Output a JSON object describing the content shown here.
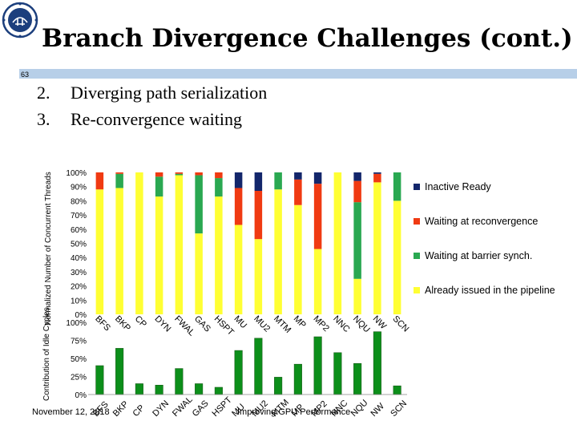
{
  "slide": {
    "title": "Branch Divergence Challenges (cont.)",
    "number": "63",
    "bullets": [
      {
        "num": "2.",
        "text": "Diverging path serialization"
      },
      {
        "num": "3.",
        "text": "Re-convergence waiting"
      }
    ],
    "footer_date": "November 12, 2018",
    "footer_title": "Improving GPU Performance"
  },
  "colors": {
    "band": "#b7cfe8",
    "inactive_ready": "#13266b",
    "waiting_reconvergence": "#f03a12",
    "waiting_barrier": "#2aa851",
    "already_issued": "#ffff33",
    "idle_bar": "#0c8f1a"
  },
  "chart_data": [
    {
      "type": "bar",
      "stacked": true,
      "categories": [
        "BFS",
        "BKP",
        "CP",
        "DYN",
        "FWAL",
        "GAS",
        "HSPT",
        "MU",
        "MU2",
        "MTM",
        "MP",
        "MP2",
        "NNC",
        "NQU",
        "NW",
        "SCN"
      ],
      "ylabel": "Normalized Number of Concurrent Threads",
      "ylim": [
        0,
        100
      ],
      "yticks": [
        "0%",
        "10%",
        "20%",
        "30%",
        "40%",
        "50%",
        "60%",
        "70%",
        "80%",
        "90%",
        "100%"
      ],
      "legend_position": "right",
      "series": [
        {
          "name": "Already issued in the pipeline",
          "color_key": "already_issued",
          "values": [
            88,
            89,
            100,
            83,
            98,
            57,
            83,
            63,
            53,
            88,
            77,
            46,
            100,
            25,
            93,
            80
          ]
        },
        {
          "name": "Waiting at barrier synch.",
          "color_key": "waiting_barrier",
          "values": [
            0,
            10,
            0,
            14,
            1,
            41,
            13,
            0,
            0,
            12,
            0,
            0,
            0,
            54,
            0,
            20
          ]
        },
        {
          "name": "Waiting at reconvergence",
          "color_key": "waiting_reconvergence",
          "values": [
            12,
            1,
            0,
            3,
            1,
            2,
            4,
            26,
            34,
            0,
            18,
            46,
            0,
            15,
            6,
            0
          ]
        },
        {
          "name": "Inactive Ready",
          "color_key": "inactive_ready",
          "values": [
            0,
            0,
            0,
            0,
            0,
            0,
            0,
            11,
            13,
            0,
            5,
            8,
            0,
            6,
            1,
            0
          ]
        }
      ]
    },
    {
      "type": "bar",
      "categories": [
        "BFS",
        "BKP",
        "CP",
        "DYN",
        "FWAL",
        "GAS",
        "HSPT",
        "MU",
        "MU2",
        "MTM",
        "MP",
        "MP2",
        "NNC",
        "NQU",
        "NW",
        "SCN"
      ],
      "ylabel": "Contribution of Idle Cycles",
      "ylim": [
        0,
        100
      ],
      "yticks": [
        "0%",
        "25%",
        "50%",
        "75%",
        "100%"
      ],
      "series": [
        {
          "name": "",
          "color_key": "idle_bar",
          "values": [
            40,
            64,
            15,
            13,
            36,
            15,
            10,
            61,
            78,
            24,
            42,
            80,
            58,
            43,
            87,
            12
          ]
        }
      ]
    }
  ]
}
